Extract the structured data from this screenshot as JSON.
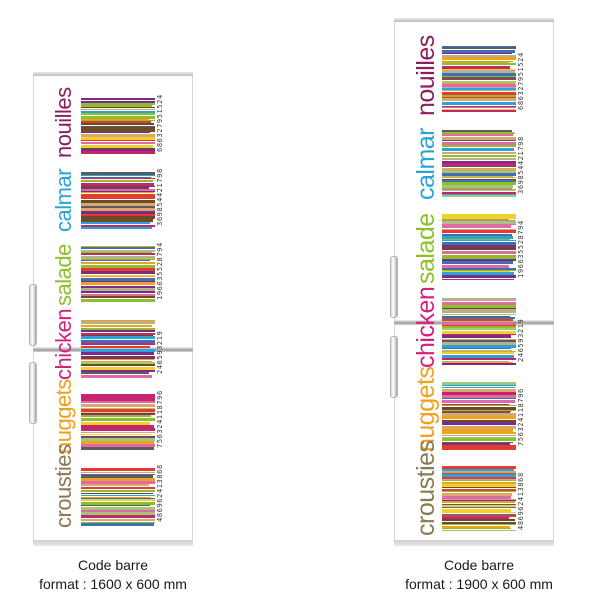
{
  "fridges": [
    {
      "caption_line1": "Code barre",
      "caption_line2": "format : 1600 x 600 mm",
      "items": [
        {
          "word": "nouilles",
          "color": "#8b1f5e",
          "number": "686327951524"
        },
        {
          "word": "calmar",
          "color": "#2aa3d8",
          "number": "369854421798"
        },
        {
          "word": "salade",
          "color": "#8dbf2a",
          "number": "196635528794"
        },
        {
          "word": "chicken",
          "color": "#d61f7a",
          "number": "246593219"
        },
        {
          "word": "nuggets",
          "color": "#f0a11e",
          "number": "756324118796"
        },
        {
          "word": "crousties",
          "color": "#8a7a52",
          "number": "486962413868"
        }
      ]
    },
    {
      "caption_line1": "Code barre",
      "caption_line2": "format : 1900 x 600 mm",
      "items": [
        {
          "word": "nouilles",
          "color": "#8b1f5e",
          "number": "686327951524"
        },
        {
          "word": "calmar",
          "color": "#2aa3d8",
          "number": "369854421798"
        },
        {
          "word": "salade",
          "color": "#8dbf2a",
          "number": "196635528794"
        },
        {
          "word": "chicken",
          "color": "#d61f7a",
          "number": "246593219"
        },
        {
          "word": "nuggets",
          "color": "#f0a11e",
          "number": "756324118796"
        },
        {
          "word": "crousties",
          "color": "#8a7a52",
          "number": "486962413868"
        }
      ]
    }
  ],
  "bar_palette": [
    "#c4256e",
    "#7c2a8c",
    "#2aa3d8",
    "#8dbf2a",
    "#f0a11e",
    "#e53b2e",
    "#6b4a2a",
    "#b8b08a",
    "#f2d02a",
    "#5c5c5c",
    "#e06aa8",
    "#3f6fb5",
    "#a0c878",
    "#d9a86a"
  ]
}
